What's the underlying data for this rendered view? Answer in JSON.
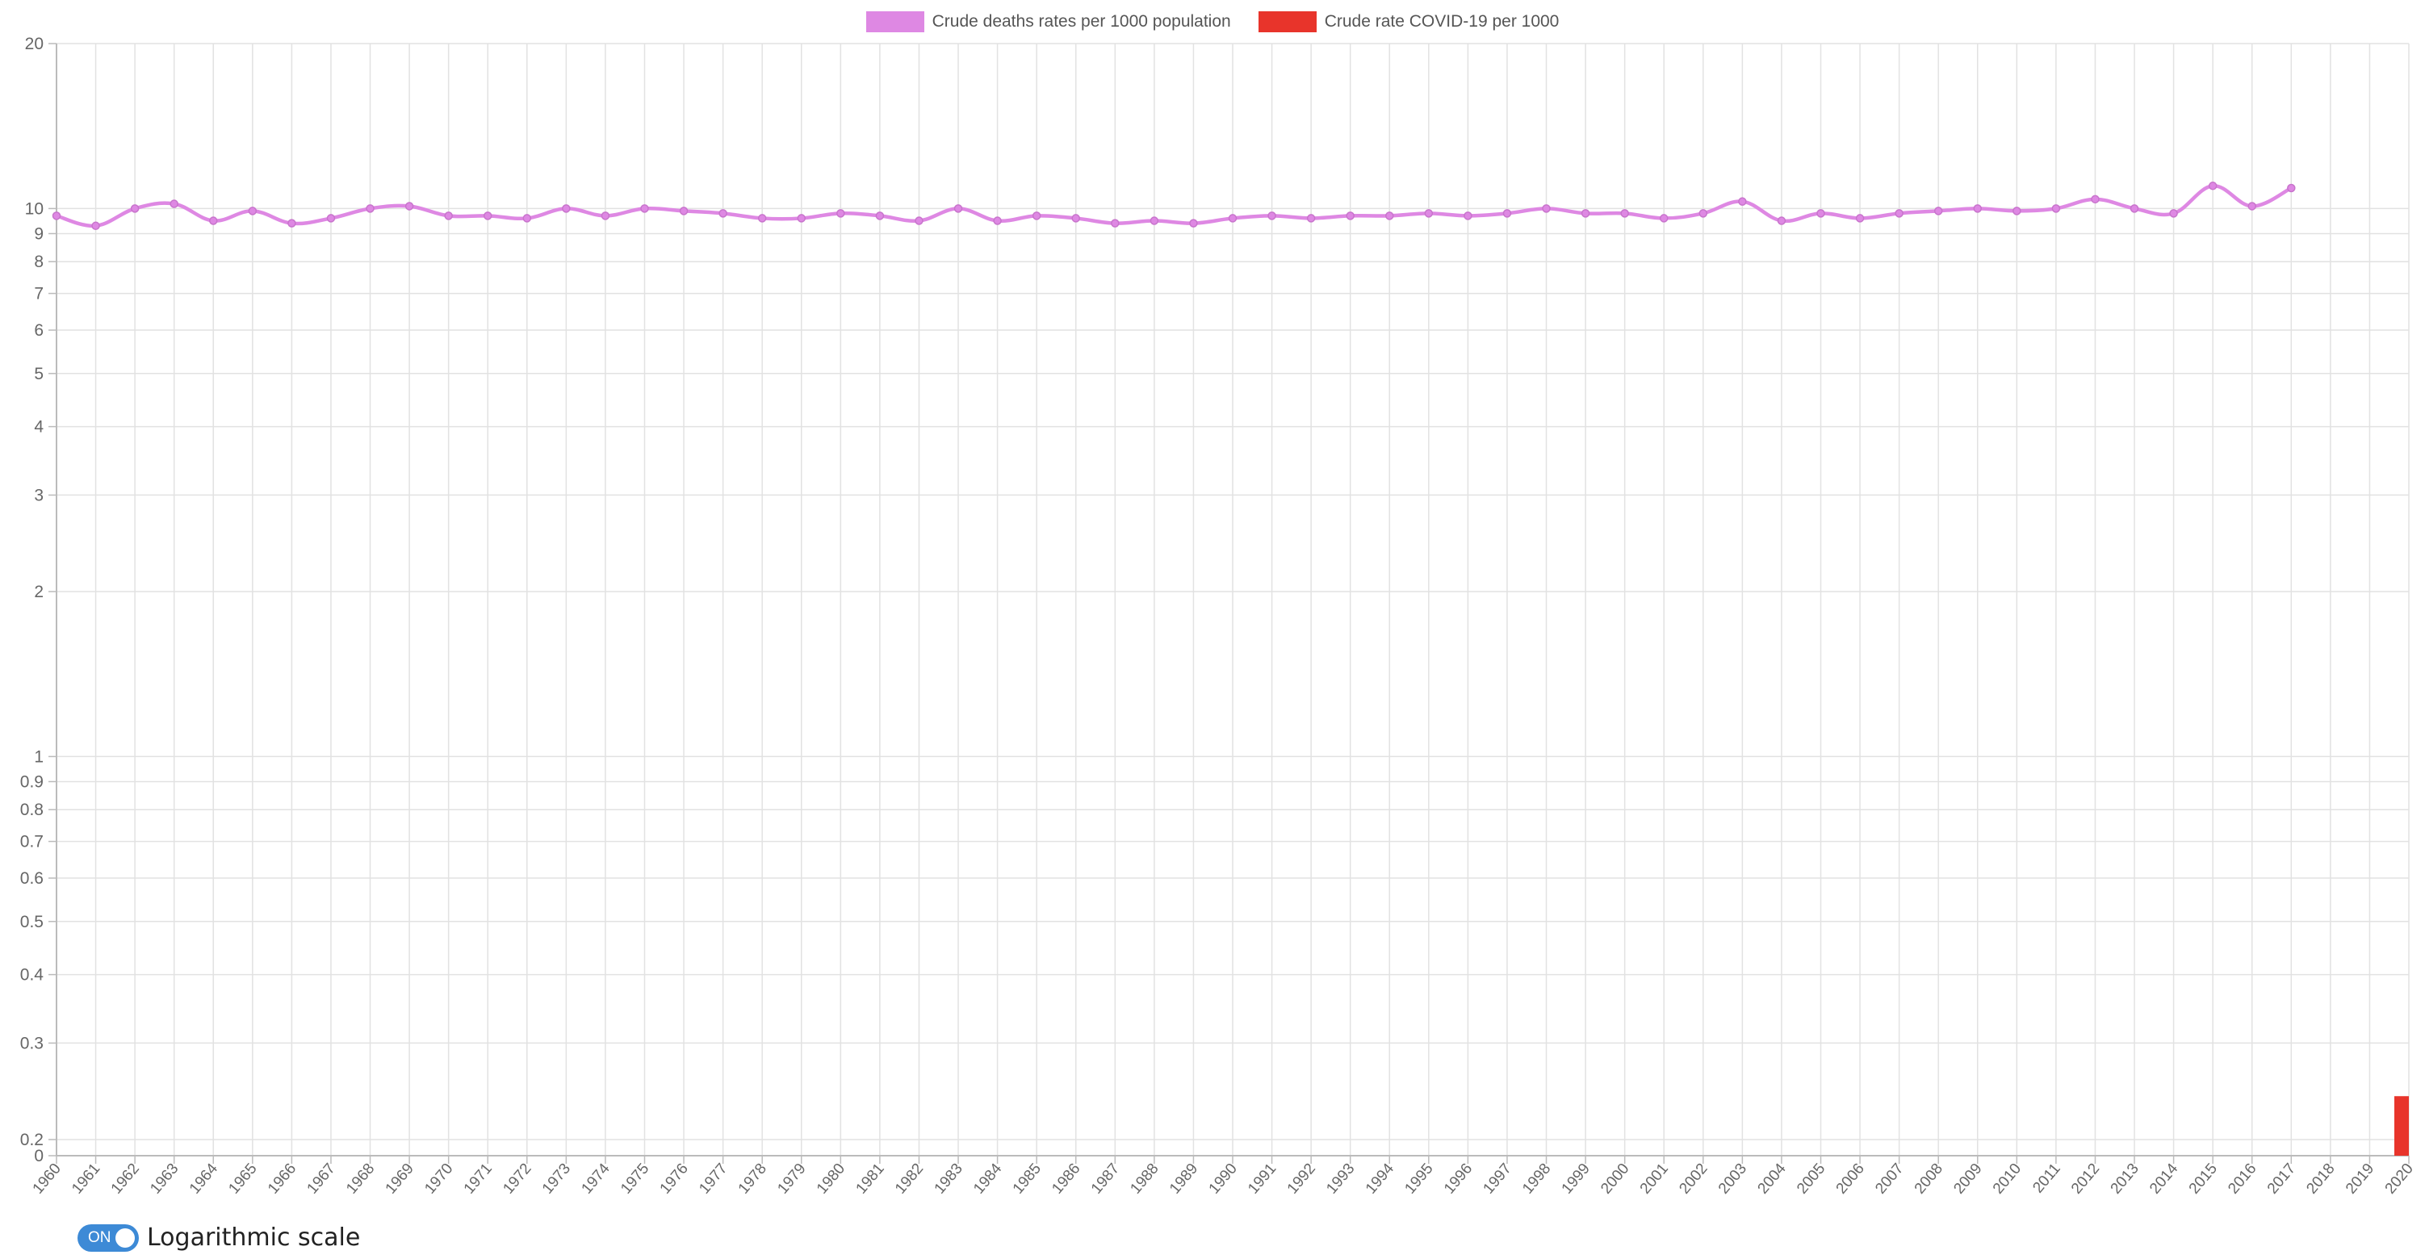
{
  "legend": {
    "items": [
      {
        "label": "Crude deaths rates per 1000 population",
        "color": "#de88e3"
      },
      {
        "label": "Crude rate COVID-19 per 1000",
        "color": "#e8342b"
      }
    ]
  },
  "toggle": {
    "state_text": "ON",
    "label": "Logarithmic scale",
    "color": "#3d8ad6"
  },
  "chart_data": {
    "type": "line",
    "x_labels": [
      "1960",
      "1961",
      "1962",
      "1963",
      "1964",
      "1965",
      "1966",
      "1967",
      "1968",
      "1969",
      "1970",
      "1971",
      "1972",
      "1973",
      "1974",
      "1975",
      "1976",
      "1977",
      "1978",
      "1979",
      "1980",
      "1981",
      "1982",
      "1983",
      "1984",
      "1985",
      "1986",
      "1987",
      "1988",
      "1989",
      "1990",
      "1991",
      "1992",
      "1993",
      "1994",
      "1995",
      "1996",
      "1997",
      "1998",
      "1999",
      "2000",
      "2001",
      "2002",
      "2003",
      "2004",
      "2005",
      "2006",
      "2007",
      "2008",
      "2009",
      "2010",
      "2011",
      "2012",
      "2013",
      "2014",
      "2015",
      "2016",
      "2017",
      "2018",
      "2019",
      "2020"
    ],
    "y_scale": "logarithmic",
    "ylim": [
      0,
      20
    ],
    "y_ticks": [
      "20",
      "10",
      "9",
      "8",
      "7",
      "6",
      "5",
      "4",
      "3",
      "2",
      "1",
      "0.9",
      "0.8",
      "0.7",
      "0.6",
      "0.5",
      "0.4",
      "0.3",
      "0.2",
      "0"
    ],
    "grid": true,
    "legend_position": "top",
    "series": [
      {
        "name": "Crude deaths rates per 1000 population",
        "type": "line",
        "color": "#de88e3",
        "values": [
          9.7,
          9.3,
          10.0,
          10.2,
          9.5,
          9.9,
          9.4,
          9.6,
          10.0,
          10.1,
          9.7,
          9.7,
          9.6,
          10.0,
          9.7,
          10.0,
          9.9,
          9.8,
          9.6,
          9.6,
          9.8,
          9.7,
          9.5,
          10.0,
          9.5,
          9.7,
          9.6,
          9.4,
          9.5,
          9.4,
          9.6,
          9.7,
          9.6,
          9.7,
          9.7,
          9.8,
          9.7,
          9.8,
          10.0,
          9.8,
          9.8,
          9.6,
          9.8,
          10.3,
          9.5,
          9.8,
          9.6,
          9.8,
          9.9,
          10.0,
          9.9,
          10.0,
          10.4,
          10.0,
          9.8,
          11.0,
          10.1,
          10.9,
          null,
          null,
          null
        ]
      },
      {
        "name": "Crude rate COVID-19 per 1000",
        "type": "bar",
        "color": "#e8342b",
        "values": [
          null,
          null,
          null,
          null,
          null,
          null,
          null,
          null,
          null,
          null,
          null,
          null,
          null,
          null,
          null,
          null,
          null,
          null,
          null,
          null,
          null,
          null,
          null,
          null,
          null,
          null,
          null,
          null,
          null,
          null,
          null,
          null,
          null,
          null,
          null,
          null,
          null,
          null,
          null,
          null,
          null,
          null,
          null,
          null,
          null,
          null,
          null,
          null,
          null,
          null,
          null,
          null,
          null,
          null,
          null,
          null,
          null,
          null,
          null,
          null,
          0.24
        ]
      }
    ]
  }
}
